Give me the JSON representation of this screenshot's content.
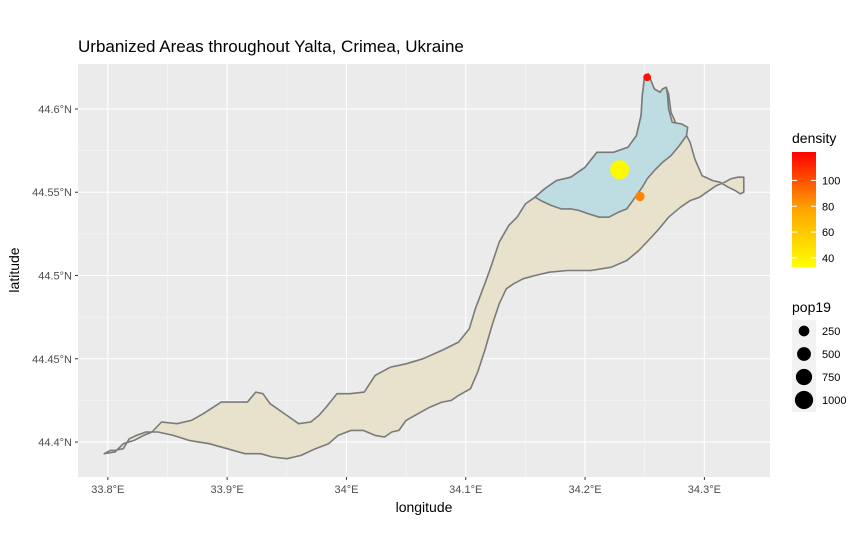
{
  "chart_data": {
    "type": "map",
    "title": "Urbanized Areas throughout Yalta, Crimea, Ukraine",
    "xlabel": "longitude",
    "ylabel": "latitude",
    "xlim": [
      33.775,
      34.355
    ],
    "ylim": [
      44.379,
      44.627
    ],
    "x_ticks": [
      33.8,
      33.9,
      34.0,
      34.1,
      34.2,
      34.3
    ],
    "x_tick_labels": [
      "33.8°E",
      "33.9°E",
      "34°E",
      "34.1°E",
      "34.2°E",
      "34.3°E"
    ],
    "y_ticks": [
      44.4,
      44.45,
      44.5,
      44.55,
      44.6
    ],
    "y_tick_labels": [
      "44.4°N",
      "44.45°N",
      "44.5°N",
      "44.55°N",
      "44.6°N"
    ],
    "grid": true,
    "colors": {
      "panel": "#ebebeb",
      "grid": "#ffffff",
      "region_fill": "#e8e2cc",
      "urban_fill": "#bddde3",
      "outline": "#7a7a7a",
      "density_low": "#ffff00",
      "density_high": "#ff0000"
    },
    "regions": [
      {
        "kind": "municipality",
        "lonlat": [
          [
            33.797,
            44.393
          ],
          [
            33.802,
            44.395
          ],
          [
            33.806,
            44.395
          ],
          [
            33.813,
            44.396
          ],
          [
            33.818,
            44.402
          ],
          [
            33.824,
            44.404
          ],
          [
            33.832,
            44.406
          ],
          [
            33.842,
            44.406
          ],
          [
            33.855,
            44.404
          ],
          [
            33.868,
            44.401
          ],
          [
            33.885,
            44.399
          ],
          [
            33.9,
            44.396
          ],
          [
            33.915,
            44.393
          ],
          [
            33.928,
            44.393
          ],
          [
            33.938,
            44.391
          ],
          [
            33.95,
            44.39
          ],
          [
            33.962,
            44.392
          ],
          [
            33.974,
            44.396
          ],
          [
            33.985,
            44.399
          ],
          [
            33.993,
            44.404
          ],
          [
            34.004,
            44.407
          ],
          [
            34.014,
            44.407
          ],
          [
            34.024,
            44.404
          ],
          [
            34.032,
            44.403
          ],
          [
            34.038,
            44.406
          ],
          [
            34.044,
            44.407
          ],
          [
            34.05,
            44.413
          ],
          [
            34.06,
            44.417
          ],
          [
            34.07,
            44.421
          ],
          [
            34.08,
            44.424
          ],
          [
            34.088,
            44.425
          ],
          [
            34.094,
            44.428
          ],
          [
            34.104,
            44.432
          ],
          [
            34.11,
            44.442
          ],
          [
            34.116,
            44.455
          ],
          [
            34.122,
            44.47
          ],
          [
            34.128,
            44.483
          ],
          [
            34.134,
            44.492
          ],
          [
            34.14,
            44.495
          ],
          [
            34.148,
            44.498
          ],
          [
            34.158,
            44.5
          ],
          [
            34.17,
            44.502
          ],
          [
            34.185,
            44.503
          ],
          [
            34.205,
            44.503
          ],
          [
            34.222,
            44.505
          ],
          [
            34.235,
            44.509
          ],
          [
            34.245,
            44.515
          ],
          [
            34.253,
            44.521
          ],
          [
            34.262,
            44.528
          ],
          [
            34.27,
            44.535
          ],
          [
            34.28,
            44.541
          ],
          [
            34.288,
            44.545
          ],
          [
            34.296,
            44.547
          ],
          [
            34.302,
            44.55
          ],
          [
            34.31,
            44.554
          ],
          [
            34.317,
            44.556
          ],
          [
            34.322,
            44.558
          ],
          [
            34.328,
            44.559
          ],
          [
            34.333,
            44.559
          ],
          [
            34.333,
            44.55
          ],
          [
            34.33,
            44.549
          ],
          [
            34.326,
            44.551
          ],
          [
            34.32,
            44.553
          ],
          [
            34.313,
            44.556
          ],
          [
            34.307,
            44.557
          ],
          [
            34.298,
            44.56
          ],
          [
            34.292,
            44.57
          ],
          [
            34.288,
            44.58
          ],
          [
            34.282,
            44.588
          ],
          [
            34.277,
            44.59
          ],
          [
            34.272,
            44.598
          ],
          [
            34.27,
            44.609
          ],
          [
            34.268,
            44.613
          ],
          [
            34.265,
            44.612
          ],
          [
            34.263,
            44.61
          ],
          [
            34.258,
            44.612
          ],
          [
            34.253,
            44.621
          ],
          [
            34.25,
            44.62
          ],
          [
            34.248,
            44.608
          ],
          [
            34.247,
            44.596
          ],
          [
            34.243,
            44.584
          ],
          [
            34.236,
            44.577
          ],
          [
            34.224,
            44.574
          ],
          [
            34.21,
            44.574
          ],
          [
            34.2,
            44.565
          ],
          [
            34.188,
            44.559
          ],
          [
            34.176,
            44.557
          ],
          [
            34.166,
            44.552
          ],
          [
            34.158,
            44.547
          ],
          [
            34.15,
            44.543
          ],
          [
            34.143,
            44.535
          ],
          [
            34.136,
            44.53
          ],
          [
            34.128,
            44.52
          ],
          [
            34.121,
            44.505
          ],
          [
            34.116,
            44.495
          ],
          [
            34.108,
            44.48
          ],
          [
            34.103,
            44.468
          ],
          [
            34.094,
            44.46
          ],
          [
            34.08,
            44.455
          ],
          [
            34.064,
            44.45
          ],
          [
            34.05,
            44.447
          ],
          [
            34.037,
            44.445
          ],
          [
            34.024,
            44.44
          ],
          [
            34.015,
            44.43
          ],
          [
            34.003,
            44.429
          ],
          [
            33.992,
            44.429
          ],
          [
            33.983,
            44.421
          ],
          [
            33.977,
            44.416
          ],
          [
            33.97,
            44.412
          ],
          [
            33.96,
            44.411
          ],
          [
            33.95,
            44.416
          ],
          [
            33.936,
            44.423
          ],
          [
            33.93,
            44.429
          ],
          [
            33.924,
            44.43
          ],
          [
            33.917,
            44.424
          ],
          [
            33.906,
            44.424
          ],
          [
            33.895,
            44.424
          ],
          [
            33.88,
            44.417
          ],
          [
            33.87,
            44.413
          ],
          [
            33.858,
            44.411
          ],
          [
            33.845,
            44.412
          ],
          [
            33.837,
            44.406
          ],
          [
            33.83,
            44.404
          ],
          [
            33.822,
            44.401
          ],
          [
            33.813,
            44.399
          ],
          [
            33.806,
            44.394
          ],
          [
            33.797,
            44.393
          ]
        ]
      },
      {
        "kind": "urbanized",
        "lonlat": [
          [
            34.158,
            44.547
          ],
          [
            34.163,
            44.545
          ],
          [
            34.172,
            44.542
          ],
          [
            34.18,
            44.54
          ],
          [
            34.188,
            44.54
          ],
          [
            34.195,
            44.539
          ],
          [
            34.203,
            44.537
          ],
          [
            34.212,
            44.535
          ],
          [
            34.22,
            44.535
          ],
          [
            34.228,
            44.538
          ],
          [
            34.235,
            44.54
          ],
          [
            34.24,
            44.545
          ],
          [
            34.244,
            44.549
          ],
          [
            34.248,
            44.553
          ],
          [
            34.252,
            44.558
          ],
          [
            34.258,
            44.563
          ],
          [
            34.265,
            44.568
          ],
          [
            34.272,
            44.572
          ],
          [
            34.279,
            44.578
          ],
          [
            34.285,
            44.584
          ],
          [
            34.286,
            44.589
          ],
          [
            34.281,
            44.591
          ],
          [
            34.273,
            44.592
          ],
          [
            34.27,
            44.6
          ],
          [
            34.269,
            44.609
          ],
          [
            34.268,
            44.613
          ],
          [
            34.265,
            44.612
          ],
          [
            34.263,
            44.61
          ],
          [
            34.258,
            44.612
          ],
          [
            34.253,
            44.621
          ],
          [
            34.25,
            44.62
          ],
          [
            34.248,
            44.608
          ],
          [
            34.247,
            44.596
          ],
          [
            34.243,
            44.584
          ],
          [
            34.236,
            44.577
          ],
          [
            34.224,
            44.574
          ],
          [
            34.21,
            44.574
          ],
          [
            34.2,
            44.565
          ],
          [
            34.188,
            44.559
          ],
          [
            34.176,
            44.557
          ],
          [
            34.166,
            44.552
          ],
          [
            34.158,
            44.547
          ]
        ]
      }
    ],
    "settlements": [
      {
        "lon": 34.229,
        "lat": 44.5635,
        "pop19": 1100,
        "density": 36
      },
      {
        "lon": 34.246,
        "lat": 44.5475,
        "pop19": 170,
        "density": 86
      },
      {
        "lon": 34.252,
        "lat": 44.619,
        "pop19": 90,
        "density": 118
      }
    ],
    "legend_density": {
      "title": "density",
      "breaks": [
        40,
        60,
        80,
        100
      ],
      "labels": [
        "40",
        "60",
        "80",
        "100"
      ],
      "range": [
        33,
        122
      ]
    },
    "legend_pop": {
      "title": "pop19",
      "breaks": [
        250,
        500,
        750,
        1000
      ],
      "labels": [
        "250",
        "500",
        "750",
        "1000"
      ]
    }
  }
}
